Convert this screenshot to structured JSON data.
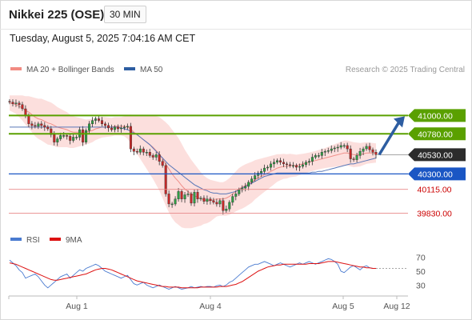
{
  "header": {
    "title": "Nikkei 225 (OSE)",
    "timeframe": "30 MIN"
  },
  "datetime": "Tuesday, August 5, 2025 7:04:16 AM CET",
  "colors": {
    "bollinger": "#f28b82",
    "ma50": "#2d5da1",
    "resistance": "#5aa000",
    "support_line": "#1a56c4",
    "red_level": "#cc0000",
    "arrow": "#2d5da1",
    "rsi": "#4a7bd0",
    "ma9": "#dd1111"
  },
  "chart_data": [
    {
      "type": "candlestick",
      "legend": [
        {
          "name": "MA 20 + Bollinger Bands",
          "color": "#f28b82"
        },
        {
          "name": "MA 50",
          "color": "#2d5da1"
        }
      ],
      "source": "Research © 2025 Trading Central",
      "ylim": [
        39700,
        41300
      ],
      "x_labels": [
        "Aug 1",
        "Aug 4",
        "Aug 5",
        "Aug 12"
      ],
      "levels": [
        {
          "value": 41000,
          "label": "41000.00",
          "style": "resistance"
        },
        {
          "value": 40780,
          "label": "40780.00",
          "style": "resistance"
        },
        {
          "value": 40530,
          "label": "40530.00",
          "style": "current"
        },
        {
          "value": 40300,
          "label": "40300.00",
          "style": "pivot"
        },
        {
          "value": 40115,
          "label": "40115.00",
          "style": "support"
        },
        {
          "value": 39830,
          "label": "39830.00",
          "style": "support"
        }
      ],
      "closes": [
        41160,
        41140,
        41150,
        41130,
        41080,
        41000,
        40900,
        40880,
        40870,
        40900,
        40880,
        40860,
        40840,
        40770,
        40680,
        40720,
        40760,
        40760,
        40750,
        40700,
        40740,
        40740,
        40830,
        40680,
        40820,
        40900,
        40940,
        40960,
        40940,
        40900,
        40880,
        40850,
        40830,
        40860,
        40840,
        40850,
        40860,
        40870,
        40600,
        40570,
        40560,
        40600,
        40560,
        40560,
        40520,
        40500,
        40530,
        40450,
        40400,
        40060,
        39940,
        39940,
        40000,
        40090,
        40000,
        40050,
        40060,
        39950,
        40080,
        40000,
        40010,
        39970,
        40000,
        39980,
        39960,
        39940,
        39980,
        39860,
        39880,
        39960,
        40030,
        40060,
        40110,
        40130,
        40150,
        40200,
        40240,
        40280,
        40310,
        40330,
        40370,
        40380,
        40420,
        40440,
        40460,
        40440,
        40420,
        40410,
        40400,
        40400,
        40380,
        40390,
        40410,
        40440,
        40450,
        40500,
        40520,
        40520,
        40560,
        40570,
        40580,
        40600,
        40610,
        40620,
        40640,
        40640,
        40600,
        40480,
        40470,
        40520,
        40570,
        40600,
        40630,
        40590,
        40560,
        40530
      ],
      "ma20": [
        41150,
        41140,
        41130,
        41110,
        41090,
        41060,
        41040,
        41010,
        40980,
        40960,
        40950,
        40930,
        40910,
        40900,
        40880,
        40860,
        40850,
        40840,
        40830,
        40810,
        40800,
        40800,
        40800,
        40800,
        40800,
        40810,
        40820,
        40840,
        40850,
        40860,
        40860,
        40860,
        40860,
        40870,
        40870,
        40870,
        40870,
        40860,
        40840,
        40800,
        40770,
        40740,
        40710,
        40680,
        40650,
        40620,
        40580,
        40540,
        40480,
        40420,
        40360,
        40300,
        40250,
        40210,
        40160,
        40120,
        40090,
        40060,
        40040,
        40020,
        40000,
        39990,
        39980,
        39980,
        39990,
        40000,
        40000,
        40000,
        40010,
        40030,
        40060,
        40090,
        40120,
        40140,
        40160,
        40180,
        40200,
        40230,
        40250,
        40270,
        40290,
        40310,
        40330,
        40350,
        40370,
        40380,
        40390,
        40390,
        40400,
        40400,
        40400,
        40410,
        40420,
        40430,
        40440,
        40450,
        40460,
        40470,
        40480,
        40490,
        40500,
        40510,
        40520,
        40530,
        40540,
        40550,
        40550,
        40540,
        40530,
        40530,
        40530,
        40540,
        40550,
        40550,
        40550,
        40550
      ],
      "bb_width": [
        90,
        100,
        110,
        130,
        150,
        170,
        190,
        210,
        230,
        240,
        250,
        255,
        260,
        255,
        250,
        240,
        230,
        220,
        210,
        200,
        190,
        180,
        170,
        160,
        150,
        145,
        140,
        135,
        130,
        125,
        120,
        115,
        110,
        110,
        110,
        110,
        120,
        140,
        170,
        200,
        230,
        260,
        290,
        320,
        350,
        380,
        410,
        440,
        470,
        500,
        520,
        530,
        530,
        520,
        500,
        470,
        440,
        410,
        380,
        350,
        320,
        290,
        270,
        250,
        230,
        210,
        200,
        200,
        210,
        220,
        230,
        240,
        250,
        255,
        255,
        250,
        245,
        235,
        225,
        215,
        205,
        195,
        185,
        175,
        165,
        155,
        150,
        145,
        140,
        135,
        130,
        125,
        120,
        118,
        116,
        115,
        115,
        116,
        118,
        120,
        125,
        130,
        135,
        140,
        145,
        150,
        150,
        150,
        150,
        145,
        140,
        135,
        130,
        125,
        120,
        115
      ],
      "ma50": [
        40860,
        40860,
        40860,
        40860,
        40860,
        40860,
        40860,
        40860,
        40860,
        40860,
        40860,
        40860,
        40860,
        40860,
        40860,
        40860,
        40860,
        40860,
        40860,
        40860,
        40860,
        40860,
        40860,
        40860,
        40860,
        40860,
        40860,
        40860,
        40860,
        40860,
        40860,
        40860,
        40860,
        40860,
        40860,
        40850,
        40840,
        40830,
        40810,
        40790,
        40770,
        40740,
        40710,
        40680,
        40650,
        40610,
        40570,
        40530,
        40490,
        40450,
        40410,
        40380,
        40350,
        40320,
        40290,
        40260,
        40230,
        40200,
        40170,
        40150,
        40130,
        40110,
        40100,
        40080,
        40070,
        40070,
        40060,
        40060,
        40060,
        40070,
        40080,
        40090,
        40110,
        40130,
        40150,
        40170,
        40190,
        40210,
        40230,
        40250,
        40270,
        40280,
        40290,
        40300,
        40310,
        40310,
        40310,
        40310,
        40310,
        40310,
        40310,
        40310,
        40310,
        40310,
        40310,
        40320,
        40320,
        40330,
        40330,
        40340,
        40350,
        40360,
        40370,
        40380,
        40390,
        40400,
        40410,
        40420,
        40420,
        40430,
        40440,
        40450,
        40460,
        40470,
        40480,
        40490
      ]
    },
    {
      "type": "line",
      "legend": [
        {
          "name": "RSI",
          "color": "#4a7bd0"
        },
        {
          "name": "9MA",
          "color": "#dd1111"
        }
      ],
      "ylim": [
        20,
        80
      ],
      "yticks": [
        70,
        50,
        30
      ],
      "rsi": [
        66,
        62,
        58,
        52,
        48,
        40,
        42,
        44,
        46,
        42,
        36,
        30,
        26,
        30,
        34,
        38,
        42,
        44,
        46,
        40,
        44,
        48,
        52,
        50,
        54,
        56,
        58,
        60,
        58,
        54,
        50,
        48,
        46,
        44,
        42,
        40,
        42,
        44,
        38,
        32,
        30,
        32,
        34,
        30,
        28,
        26,
        28,
        30,
        28,
        26,
        24,
        26,
        28,
        26,
        24,
        25,
        26,
        28,
        26,
        27,
        28,
        27,
        28,
        28,
        27,
        29,
        30,
        28,
        30,
        34,
        36,
        40,
        44,
        48,
        52,
        56,
        58,
        60,
        60,
        62,
        64,
        62,
        60,
        58,
        60,
        62,
        60,
        58,
        56,
        58,
        60,
        62,
        60,
        62,
        64,
        62,
        60,
        62,
        64,
        66,
        68,
        67,
        64,
        60,
        50,
        48,
        52,
        56,
        58,
        55,
        52,
        56,
        58,
        55,
        54,
        54
      ],
      "ma9": [
        62,
        61,
        60,
        58,
        56,
        54,
        52,
        50,
        48,
        46,
        44,
        42,
        40,
        38,
        37,
        37,
        38,
        39,
        40,
        41,
        42,
        43,
        44,
        45,
        46,
        48,
        50,
        52,
        53,
        54,
        54,
        53,
        52,
        50,
        48,
        46,
        44,
        42,
        40,
        38,
        36,
        35,
        34,
        33,
        32,
        31,
        30,
        29,
        28,
        28,
        27,
        27,
        27,
        27,
        26,
        26,
        26,
        26,
        26,
        26,
        27,
        27,
        27,
        27,
        27,
        27,
        28,
        28,
        28,
        29,
        30,
        31,
        33,
        35,
        38,
        41,
        44,
        47,
        50,
        52,
        54,
        56,
        57,
        58,
        59,
        59,
        60,
        60,
        60,
        60,
        60,
        60,
        60,
        60,
        61,
        61,
        61,
        61,
        62,
        63,
        64,
        64,
        64,
        63,
        62,
        61,
        60,
        59,
        58,
        57,
        56,
        56,
        55,
        55,
        54,
        54
      ],
      "reference": 54
    }
  ]
}
